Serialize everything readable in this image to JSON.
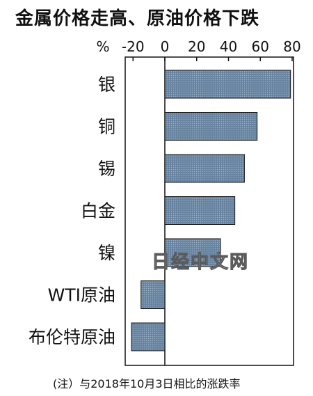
{
  "chart_data": {
    "type": "bar",
    "orientation": "horizontal",
    "title": "金属价格走高、原油价格下跌",
    "unit": "%",
    "categories": [
      "银",
      "铜",
      "锡",
      "白金",
      "镍",
      "WTI原油",
      "布伦特原油"
    ],
    "values": [
      79,
      58,
      50,
      44,
      35,
      -15,
      -21
    ],
    "xlim": [
      -28,
      82
    ],
    "xticks": [
      -20,
      0,
      20,
      40,
      60,
      80
    ],
    "grid": false,
    "bar_color": "#6e8aa6",
    "note": "(注）与2018年10月3日相比的涨跌率"
  },
  "watermark": "日经中文网"
}
